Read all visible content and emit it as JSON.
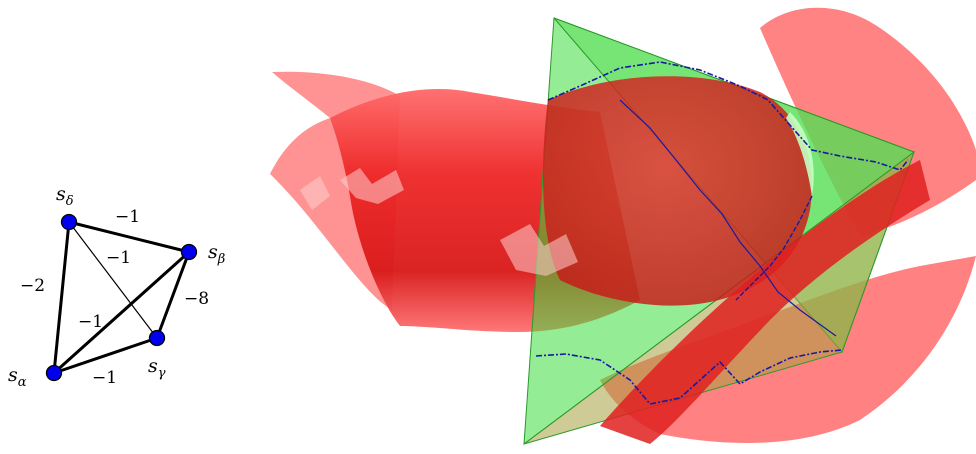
{
  "graph": {
    "vertices": [
      {
        "id": "delta",
        "base": "s",
        "sub": "δ"
      },
      {
        "id": "beta",
        "base": "s",
        "sub": "β"
      },
      {
        "id": "gamma",
        "base": "s",
        "sub": "γ"
      },
      {
        "id": "alpha",
        "base": "s",
        "sub": "α"
      }
    ],
    "edges": [
      {
        "from": "delta",
        "to": "beta",
        "weight": "−1"
      },
      {
        "from": "delta",
        "to": "gamma",
        "weight": "−1"
      },
      {
        "from": "delta",
        "to": "alpha",
        "weight": "−2"
      },
      {
        "from": "beta",
        "to": "gamma",
        "weight": "−8"
      },
      {
        "from": "alpha",
        "to": "beta",
        "weight": "−1"
      },
      {
        "from": "alpha",
        "to": "gamma",
        "weight": "−1"
      }
    ]
  },
  "colors": {
    "vertex_fill": "#0000ee",
    "edge": "#000000",
    "surface": "#ff3030",
    "surface_light": "#ff8a8a",
    "tetrahedron": "#3cdc3c",
    "intersection_curve": "#1a1aa0"
  }
}
